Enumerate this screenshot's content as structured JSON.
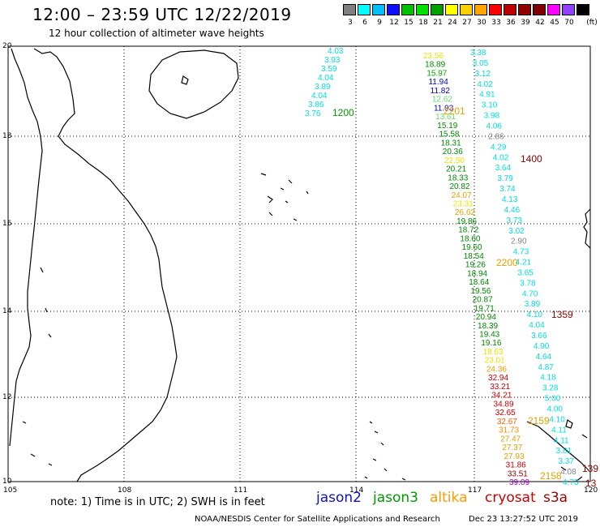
{
  "header": {
    "title": "12:00 – 23:59 UTC 12/22/2019",
    "subtitle": "12 hour collection of altimeter wave heights"
  },
  "scale": {
    "colors": [
      "#808080",
      "#00ffff",
      "#00bfff",
      "#1010ff",
      "#00c000",
      "#00e000",
      "#00a000",
      "#ffff00",
      "#ffd000",
      "#ffa500",
      "#ff0000",
      "#c00000",
      "#900000",
      "#800000",
      "#ff00ff",
      "#9040ff",
      "#000000"
    ],
    "labels": [
      "3",
      "6",
      "9",
      "12",
      "15",
      "18",
      "21",
      "24",
      "27",
      "30",
      "33",
      "36",
      "39",
      "42",
      "45",
      "70",
      "(ft)"
    ]
  },
  "axes": {
    "lon_labels": [
      "105",
      "108",
      "111",
      "114",
      "117",
      "120"
    ],
    "lat_labels": [
      "20",
      "18",
      "16",
      "14",
      "12",
      "10"
    ]
  },
  "tracks": {
    "track_a": {
      "time": "1200",
      "values": [
        "4.03",
        "3.93",
        "3.59",
        "4.04",
        "3.89",
        "4.04",
        "3.86",
        "3.76"
      ],
      "colors": [
        "#00dddd",
        "#00dddd",
        "#00dddd",
        "#00dddd",
        "#00dddd",
        "#00dddd",
        "#00dddd",
        "#00dddd"
      ]
    },
    "track_b": {
      "time": "2201",
      "values": [
        "23.56",
        "18.89",
        "15.97",
        "11.94",
        "11.82",
        "12.62",
        "11.93",
        "13.61",
        "15.19",
        "15.58",
        "18.31",
        "20.36",
        "22.50",
        "20.21",
        "18.33",
        "20.82",
        "24.07",
        "23.31",
        "26.62",
        "19.86",
        "18.72",
        "18.60",
        "19.60",
        "18.54",
        "19.26",
        "18.94",
        "18.64",
        "19.56",
        "20.87",
        "19.71",
        "20.94",
        "18.39",
        "19.43",
        "19.16",
        "18.63",
        "23.01",
        "24.36",
        "32.94",
        "33.21",
        "34.21",
        "34.89",
        "32.65",
        "32.67",
        "31.73",
        "27.47",
        "27.37",
        "27.93",
        "31.86",
        "33.51",
        "39.09"
      ],
      "colors": [
        "#e6e600",
        "#008800",
        "#00aa00",
        "#0000cc",
        "#0000cc",
        "#66dd66",
        "#0000cc",
        "#66dd66",
        "#008800",
        "#008800",
        "#008800",
        "#008800",
        "#e6e600",
        "#008800",
        "#008800",
        "#008800",
        "#e6a000",
        "#e6e600",
        "#e6a000",
        "#008800",
        "#008800",
        "#008800",
        "#008800",
        "#008800",
        "#008800",
        "#008800",
        "#008800",
        "#008800",
        "#008800",
        "#008800",
        "#008800",
        "#008800",
        "#008800",
        "#008800",
        "#e6e600",
        "#e6e600",
        "#e6a000",
        "#cc0000",
        "#cc0000",
        "#cc0000",
        "#cc0000",
        "#cc0000",
        "#ff6000",
        "#ff8c00",
        "#e6a000",
        "#e6a000",
        "#e6a000",
        "#cc0000",
        "#8b0000",
        "#9900cc"
      ]
    },
    "track_c": {
      "times": [
        "1400",
        "2200",
        "1359",
        "2159",
        "2158"
      ],
      "values": [
        "3.38",
        "3.05",
        "3.12",
        "4.02",
        "4.91",
        "3.10",
        "3.98",
        "4.06",
        "2.86",
        "4.29",
        "4.02",
        "3.64",
        "3.79",
        "3.74",
        "4.13",
        "4.46",
        "3.73",
        "3.02",
        "2.90",
        "4.73",
        "4.21",
        "3.65",
        "3.78",
        "4.70",
        "3.89",
        "4.10",
        "4.04",
        "3.66",
        "4.90",
        "4.64",
        "4.87",
        "4.18",
        "3.28",
        "5.00",
        "4.00",
        "4.10",
        "4.11",
        "4.11",
        "3.81",
        "3.37",
        "4.08",
        "4.73"
      ],
      "colors": [
        "#00dddd",
        "#00dddd",
        "#00dddd",
        "#00dddd",
        "#00dddd",
        "#00dddd",
        "#00dddd",
        "#00dddd",
        "#808080",
        "#00dddd",
        "#00dddd",
        "#00dddd",
        "#00dddd",
        "#00dddd",
        "#00dddd",
        "#00dddd",
        "#00dddd",
        "#00dddd",
        "#808080",
        "#00dddd",
        "#00dddd",
        "#00dddd",
        "#00dddd",
        "#00dddd",
        "#00dddd",
        "#00dddd",
        "#00dddd",
        "#00dddd",
        "#00dddd",
        "#00dddd",
        "#00dddd",
        "#00dddd",
        "#00dddd",
        "#00dddd",
        "#00dddd",
        "#00dddd",
        "#00dddd",
        "#00dddd",
        "#00dddd",
        "#00dddd",
        "#808080",
        "#00dddd"
      ]
    },
    "edge_labels": [
      "139",
      "13"
    ]
  },
  "legend": {
    "note": "note:  1) Time is in UTC;  2) SWH is in feet",
    "satellites": [
      {
        "name": "jason2",
        "color": "#1010cc"
      },
      {
        "name": "jason3",
        "color": "#009900"
      },
      {
        "name": "altika",
        "color": "#ff9900"
      },
      {
        "name": "cryosat",
        "color": "#cc0000"
      },
      {
        "name": "s3a",
        "color": "#990000"
      }
    ]
  },
  "footer": {
    "source": "NOAA/NESDIS Center for Satellite Applications and Research",
    "timestamp": "Dec 23 13:27:52 UTC 2019"
  }
}
